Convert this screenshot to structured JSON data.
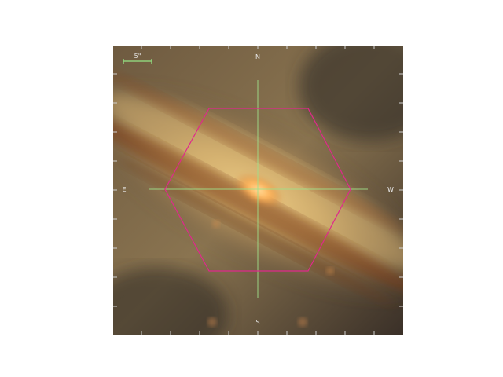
{
  "viewer": {
    "scale_bar_label": "5\"",
    "compass": {
      "north": "N",
      "south": "S",
      "east": "E",
      "west": "W"
    }
  },
  "colors": {
    "frame_background": "#7a6346",
    "scale_bar": "#8fd07a",
    "crosshair": "#9fe08a",
    "hexagon": "#e0288c",
    "tick_marks": "#d0d0d0",
    "core": "#ffb45a",
    "dust_lane": "#7a3a14"
  }
}
